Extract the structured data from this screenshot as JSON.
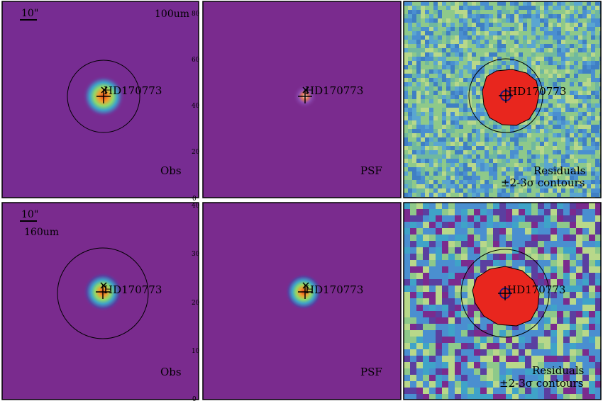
{
  "figure": {
    "rows": [
      {
        "band": "100um",
        "scalebar_label": "10\"",
        "panels": [
          {
            "kind": "obs",
            "corner_label": "Obs",
            "star_label": "HD170773"
          },
          {
            "kind": "psf",
            "corner_label": "PSF",
            "star_label": "HD170773",
            "ticks": [
              "0",
              "20",
              "40",
              "60",
              "80"
            ]
          },
          {
            "kind": "residual",
            "corner_label": "Residuals",
            "corner_label2": "±2-3σ contours",
            "star_label": "HD170773"
          }
        ]
      },
      {
        "band": "160um",
        "scalebar_label": "10\"",
        "panels": [
          {
            "kind": "obs",
            "corner_label": "Obs",
            "star_label": "HD170773"
          },
          {
            "kind": "psf",
            "corner_label": "PSF",
            "star_label": "HD170773",
            "ticks": [
              "0",
              "10",
              "20",
              "30",
              "40"
            ]
          },
          {
            "kind": "residual",
            "corner_label": "Residuals",
            "corner_label2": "±2-3σ contours",
            "star_label": "HD170773"
          }
        ]
      }
    ]
  },
  "colors": {
    "background_purple": "#7a2b8e",
    "psf_core_red": "#e8421c",
    "psf_ring_green": "#8fd96a",
    "residual_red": "#e8261e",
    "residual_green": "#8ec98a",
    "residual_blue": "#4a8fd0",
    "frame": "#000000"
  }
}
